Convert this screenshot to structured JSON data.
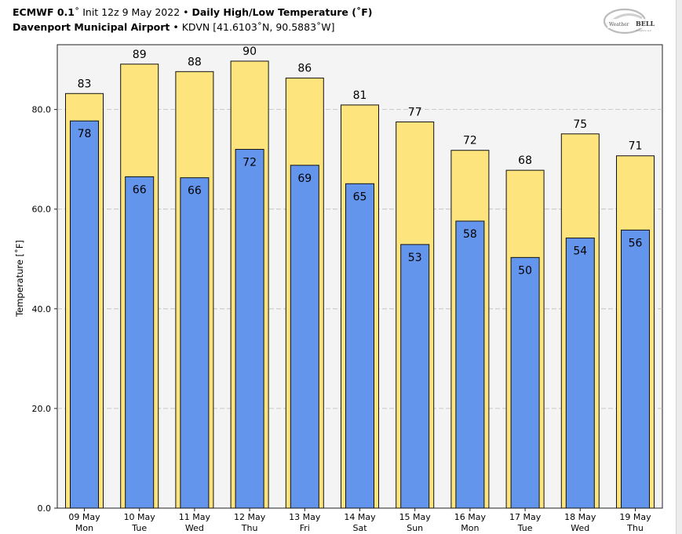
{
  "header": {
    "line1_model": "ECMWF 0.1",
    "line1_init": "˚ Init 12z 9 May 2022",
    "sep": " • ",
    "line1_title": "Daily High/Low Temperature (˚F)",
    "line2_station": "Davenport Municipal Airport",
    "line2_coords": "KDVN [41.6103˚N, 90.5883˚W]"
  },
  "logo": {
    "text_a": "Weather",
    "text_b": "BELL",
    "sub": "Analytics LLC"
  },
  "colors": {
    "high_bar": "#fde47d",
    "low_bar": "#6495ed",
    "plot_bg": "#f4f4f4",
    "grid": "#bdbdbd"
  },
  "chart_data": {
    "type": "bar",
    "ylabel": "Temperature [˚F]",
    "ylim": [
      0,
      93
    ],
    "yticks": [
      "0.0",
      "20.0",
      "40.0",
      "60.0",
      "80.0"
    ],
    "ytick_values": [
      0,
      20,
      40,
      60,
      80
    ],
    "grid": "horizontal dashed",
    "categories": [
      [
        "09 May",
        "Mon"
      ],
      [
        "10 May",
        "Tue"
      ],
      [
        "11 May",
        "Wed"
      ],
      [
        "12 May",
        "Thu"
      ],
      [
        "13 May",
        "Fri"
      ],
      [
        "14 May",
        "Sat"
      ],
      [
        "15 May",
        "Sun"
      ],
      [
        "16 May",
        "Mon"
      ],
      [
        "17 May",
        "Tue"
      ],
      [
        "18 May",
        "Wed"
      ],
      [
        "19 May",
        "Thu"
      ]
    ],
    "high_values": [
      83.2,
      89.1,
      87.6,
      89.7,
      86.3,
      80.9,
      77.5,
      71.8,
      67.8,
      75.1,
      70.7
    ],
    "low_values": [
      77.7,
      66.5,
      66.3,
      72.0,
      68.8,
      65.1,
      52.9,
      57.6,
      50.3,
      54.2,
      55.8
    ],
    "high_labels": [
      "83",
      "89",
      "88",
      "90",
      "86",
      "81",
      "77",
      "72",
      "68",
      "75",
      "71"
    ],
    "low_labels": [
      "78",
      "66",
      "66",
      "72",
      "69",
      "65",
      "53",
      "58",
      "50",
      "54",
      "56"
    ]
  }
}
